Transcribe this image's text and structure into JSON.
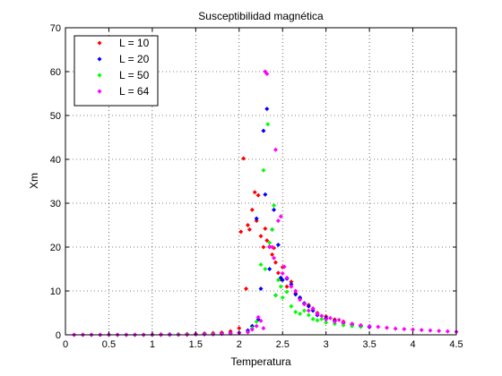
{
  "chart_data": {
    "type": "scatter",
    "title": "Susceptibilidad magnética",
    "xlabel": "Temperatura",
    "ylabel": "Xm",
    "xlim": [
      0,
      4.5
    ],
    "ylim": [
      0,
      70
    ],
    "xticks": [
      0,
      0.5,
      1,
      1.5,
      2,
      2.5,
      3,
      3.5,
      4,
      4.5
    ],
    "xtick_labels": [
      "0",
      "0.5",
      "1",
      "1.5",
      "2",
      "2.5",
      "3",
      "3.5",
      "4",
      "4.5"
    ],
    "yticks": [
      0,
      10,
      20,
      30,
      40,
      50,
      60,
      70
    ],
    "ytick_labels": [
      "0",
      "10",
      "20",
      "30",
      "40",
      "50",
      "60",
      "70"
    ],
    "grid": true,
    "legend_position": "top-left",
    "marker": "diamond",
    "series": [
      {
        "name": "L = 10",
        "color": "#ff0000",
        "x": [
          0.1,
          0.2,
          0.3,
          0.4,
          0.5,
          0.6,
          0.7,
          0.8,
          0.9,
          1.0,
          1.1,
          1.2,
          1.3,
          1.4,
          1.5,
          1.6,
          1.7,
          1.8,
          1.9,
          2.0,
          2.02,
          2.05,
          2.08,
          2.1,
          2.12,
          2.15,
          2.18,
          2.2,
          2.22,
          2.25,
          2.28,
          2.3,
          2.32,
          2.35,
          2.38,
          2.4,
          2.42,
          2.45,
          2.48,
          2.5,
          2.55,
          2.6,
          2.65,
          2.7,
          2.75,
          2.8,
          2.85,
          2.9,
          3.0,
          3.1,
          3.2,
          3.3,
          3.4,
          3.5
        ],
        "y": [
          0,
          0,
          0,
          0,
          0,
          0,
          0,
          0,
          0,
          0,
          0.1,
          0.1,
          0.1,
          0.2,
          0.2,
          0.3,
          0.4,
          0.5,
          0.8,
          1.5,
          23.5,
          40.2,
          10.5,
          25,
          24,
          28.5,
          32.5,
          26,
          31.8,
          22.5,
          20,
          24.2,
          21.5,
          20.1,
          18.3,
          19.8,
          16.5,
          14.1,
          12.6,
          15.4,
          11,
          12.1,
          9.5,
          8.3,
          7,
          6.8,
          6,
          5,
          4.2,
          3.5,
          3,
          2.5,
          2.1,
          1.8
        ]
      },
      {
        "name": "L = 20",
        "color": "#0000ff",
        "x": [
          0.1,
          0.2,
          0.3,
          0.4,
          0.5,
          0.6,
          0.7,
          0.8,
          0.9,
          1.0,
          1.1,
          1.2,
          1.3,
          1.4,
          1.5,
          1.6,
          1.7,
          1.8,
          1.9,
          2.0,
          2.1,
          2.15,
          2.2,
          2.22,
          2.25,
          2.28,
          2.3,
          2.32,
          2.35,
          2.38,
          2.4,
          2.42,
          2.45,
          2.48,
          2.5,
          2.55,
          2.6,
          2.65,
          2.7,
          2.75,
          2.8,
          2.85,
          2.9,
          3.0,
          3.1,
          3.2,
          3.3,
          3.4,
          3.5
        ],
        "y": [
          0,
          0,
          0,
          0,
          0,
          0,
          0,
          0,
          0,
          0,
          0,
          0.1,
          0.1,
          0.1,
          0.1,
          0.2,
          0.2,
          0.3,
          0.4,
          0.5,
          1,
          2,
          26.5,
          3.5,
          10.5,
          46.5,
          32,
          51.5,
          15,
          24,
          28.5,
          9,
          20.5,
          13,
          12.5,
          12.8,
          11.5,
          9.2,
          8.5,
          7.2,
          6.5,
          5.5,
          4.5,
          3.8,
          3.2,
          2.7,
          2.3,
          2,
          1.8
        ]
      },
      {
        "name": "L = 50",
        "color": "#00ff00",
        "x": [
          0.1,
          0.2,
          0.3,
          0.4,
          0.5,
          0.6,
          0.7,
          0.8,
          0.9,
          1.0,
          1.1,
          1.2,
          1.3,
          1.4,
          1.5,
          1.6,
          1.7,
          1.8,
          1.9,
          2.0,
          2.1,
          2.15,
          2.2,
          2.25,
          2.28,
          2.3,
          2.33,
          2.35,
          2.38,
          2.4,
          2.42,
          2.45,
          2.48,
          2.5,
          2.55,
          2.6,
          2.65,
          2.7,
          2.75,
          2.8,
          2.85,
          2.9,
          2.95,
          3.0,
          3.1,
          3.2,
          3.3,
          3.4
        ],
        "y": [
          0,
          0,
          0,
          0,
          0,
          0,
          0,
          0,
          0,
          0,
          0,
          0,
          0.1,
          0.1,
          0.1,
          0.1,
          0.2,
          0.2,
          0.3,
          0.4,
          0.6,
          1.5,
          3,
          16,
          37.5,
          15,
          48,
          21,
          24,
          29.5,
          9,
          12.5,
          11,
          8.5,
          9.8,
          6.5,
          5.2,
          4.8,
          5.5,
          4.5,
          3.6,
          3.3,
          3.6,
          2.8,
          2.5,
          2.2,
          2,
          1.8
        ]
      },
      {
        "name": "L = 64",
        "color": "#ff00ff",
        "x": [
          0.1,
          0.2,
          0.3,
          0.4,
          0.5,
          0.6,
          0.7,
          0.8,
          0.9,
          1.0,
          1.1,
          1.2,
          1.3,
          1.4,
          1.5,
          1.6,
          1.7,
          1.8,
          1.9,
          2.0,
          2.1,
          2.15,
          2.2,
          2.22,
          2.25,
          2.28,
          2.3,
          2.32,
          2.35,
          2.38,
          2.4,
          2.42,
          2.45,
          2.48,
          2.5,
          2.52,
          2.55,
          2.6,
          2.65,
          2.7,
          2.75,
          2.8,
          2.85,
          2.9,
          2.95,
          3.0,
          3.05,
          3.1,
          3.15,
          3.2,
          3.3,
          3.4,
          3.5,
          3.6,
          3.7,
          3.8,
          3.9,
          4.0,
          4.1,
          4.2,
          4.3,
          4.4,
          4.5
        ],
        "y": [
          0,
          0,
          0,
          0,
          0,
          0,
          0,
          0,
          0,
          0,
          0,
          0,
          0,
          0,
          0.1,
          0.1,
          0.1,
          0.2,
          0.3,
          0.4,
          0.6,
          1.2,
          2,
          4,
          3.2,
          1.5,
          60,
          59.5,
          20,
          20,
          17.5,
          42.2,
          26,
          27,
          14,
          15.5,
          13,
          11,
          10,
          8,
          7,
          5.5,
          6,
          4.8,
          4.3,
          3.5,
          3.8,
          3,
          3.4,
          2.8,
          2.5,
          2.2,
          2,
          1.8,
          1.6,
          1.4,
          1.3,
          1.2,
          1.1,
          1,
          0.9,
          0.8,
          0.7
        ]
      }
    ]
  }
}
